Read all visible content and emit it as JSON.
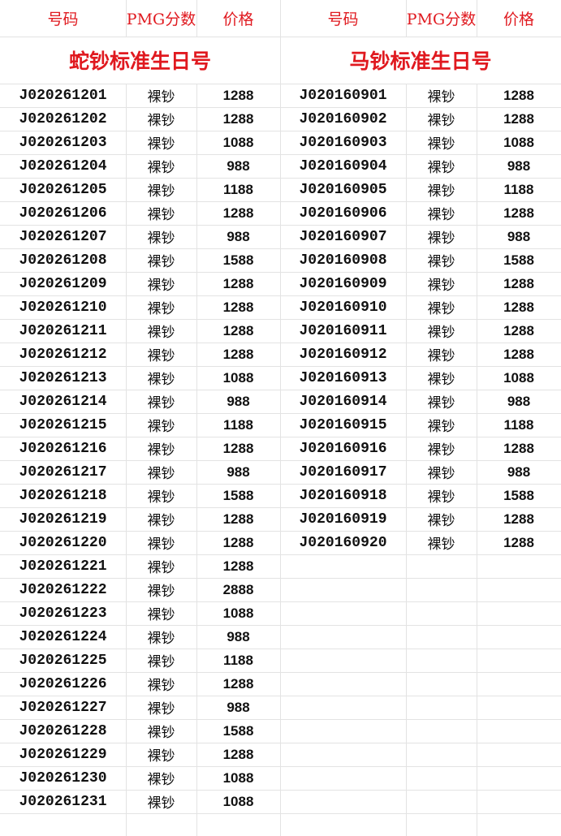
{
  "left": {
    "header": [
      "号码",
      "PMG分数",
      "价格"
    ],
    "title": "蛇钞标准生日号",
    "rows": [
      [
        "J020261201",
        "裸钞",
        1288
      ],
      [
        "J020261202",
        "裸钞",
        1288
      ],
      [
        "J020261203",
        "裸钞",
        1088
      ],
      [
        "J020261204",
        "裸钞",
        988
      ],
      [
        "J020261205",
        "裸钞",
        1188
      ],
      [
        "J020261206",
        "裸钞",
        1288
      ],
      [
        "J020261207",
        "裸钞",
        988
      ],
      [
        "J020261208",
        "裸钞",
        1588
      ],
      [
        "J020261209",
        "裸钞",
        1288
      ],
      [
        "J020261210",
        "裸钞",
        1288
      ],
      [
        "J020261211",
        "裸钞",
        1288
      ],
      [
        "J020261212",
        "裸钞",
        1288
      ],
      [
        "J020261213",
        "裸钞",
        1088
      ],
      [
        "J020261214",
        "裸钞",
        988
      ],
      [
        "J020261215",
        "裸钞",
        1188
      ],
      [
        "J020261216",
        "裸钞",
        1288
      ],
      [
        "J020261217",
        "裸钞",
        988
      ],
      [
        "J020261218",
        "裸钞",
        1588
      ],
      [
        "J020261219",
        "裸钞",
        1288
      ],
      [
        "J020261220",
        "裸钞",
        1288
      ],
      [
        "J020261221",
        "裸钞",
        1288
      ],
      [
        "J020261222",
        "裸钞",
        2888
      ],
      [
        "J020261223",
        "裸钞",
        1088
      ],
      [
        "J020261224",
        "裸钞",
        988
      ],
      [
        "J020261225",
        "裸钞",
        1188
      ],
      [
        "J020261226",
        "裸钞",
        1288
      ],
      [
        "J020261227",
        "裸钞",
        988
      ],
      [
        "J020261228",
        "裸钞",
        1588
      ],
      [
        "J020261229",
        "裸钞",
        1288
      ],
      [
        "J020261230",
        "裸钞",
        1088
      ],
      [
        "J020261231",
        "裸钞",
        1088
      ]
    ]
  },
  "right": {
    "header": [
      "号码",
      "PMG分数",
      "价格"
    ],
    "title": "马钞标准生日号",
    "rows": [
      [
        "J020160901",
        "裸钞",
        1288
      ],
      [
        "J020160902",
        "裸钞",
        1288
      ],
      [
        "J020160903",
        "裸钞",
        1088
      ],
      [
        "J020160904",
        "裸钞",
        988
      ],
      [
        "J020160905",
        "裸钞",
        1188
      ],
      [
        "J020160906",
        "裸钞",
        1288
      ],
      [
        "J020160907",
        "裸钞",
        988
      ],
      [
        "J020160908",
        "裸钞",
        1588
      ],
      [
        "J020160909",
        "裸钞",
        1288
      ],
      [
        "J020160910",
        "裸钞",
        1288
      ],
      [
        "J020160911",
        "裸钞",
        1288
      ],
      [
        "J020160912",
        "裸钞",
        1288
      ],
      [
        "J020160913",
        "裸钞",
        1088
      ],
      [
        "J020160914",
        "裸钞",
        988
      ],
      [
        "J020160915",
        "裸钞",
        1188
      ],
      [
        "J020160916",
        "裸钞",
        1288
      ],
      [
        "J020160917",
        "裸钞",
        988
      ],
      [
        "J020160918",
        "裸钞",
        1588
      ],
      [
        "J020160919",
        "裸钞",
        1288
      ],
      [
        "J020160920",
        "裸钞",
        1288
      ]
    ]
  }
}
